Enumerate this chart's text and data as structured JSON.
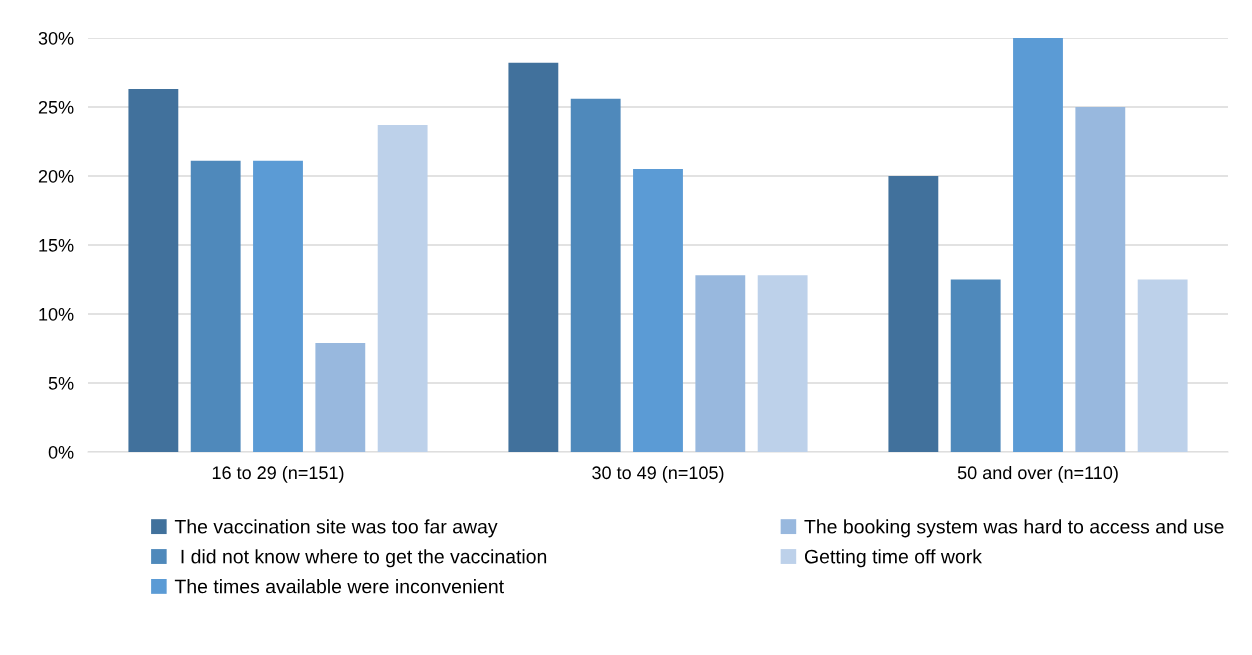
{
  "chart_data": {
    "type": "bar",
    "categories": [
      "16 to 29 (n=151)",
      "30 to 49 (n=105)",
      "50 and over (n=110)"
    ],
    "series": [
      {
        "name": "The vaccination site was too far away",
        "color": "#41719c",
        "values": [
          26.3,
          28.2,
          20.0
        ]
      },
      {
        "name": " I did not know where to get the vaccination",
        "color": "#4f89bb",
        "values": [
          21.1,
          25.6,
          12.5
        ]
      },
      {
        "name": "The times available were inconvenient",
        "color": "#5b9bd5",
        "values": [
          21.1,
          20.5,
          30.0
        ]
      },
      {
        "name": "The booking system was hard to access and use",
        "color": "#98b8de",
        "values": [
          7.9,
          12.8,
          25.0
        ]
      },
      {
        "name": "Getting time off work",
        "color": "#bdd1ea",
        "values": [
          23.7,
          12.8,
          12.5
        ]
      }
    ],
    "ylim": [
      0,
      30
    ],
    "yticks": [
      {
        "value": 0,
        "label": "0%"
      },
      {
        "value": 5,
        "label": "5%"
      },
      {
        "value": 10,
        "label": "10%"
      },
      {
        "value": 15,
        "label": "15%"
      },
      {
        "value": 20,
        "label": "20%"
      },
      {
        "value": 25,
        "label": "25%"
      },
      {
        "value": 30,
        "label": "30%"
      }
    ],
    "grid": "y",
    "legend": "bottom"
  }
}
